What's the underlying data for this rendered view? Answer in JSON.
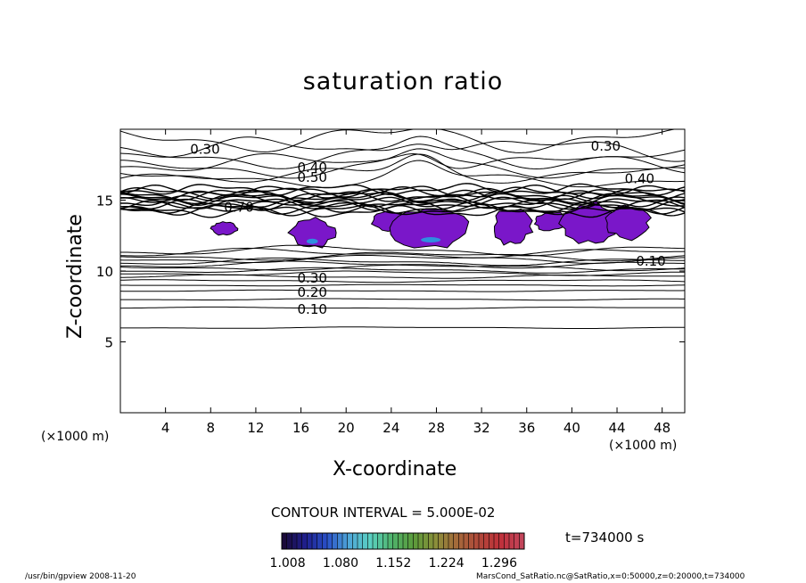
{
  "chart_data": {
    "type": "contour",
    "title": "saturation ratio",
    "xlabel": "X-coordinate",
    "ylabel": "Z-coordinate",
    "x_unit_label": "(×1000 m)",
    "xlim": [
      0,
      50
    ],
    "ylim": [
      0,
      20
    ],
    "x_ticks": [
      "4",
      "8",
      "12",
      "16",
      "20",
      "24",
      "28",
      "32",
      "36",
      "40",
      "44",
      "48"
    ],
    "x_tick_values": [
      4,
      8,
      12,
      16,
      20,
      24,
      28,
      32,
      36,
      40,
      44,
      48
    ],
    "y_ticks": [
      "5",
      "10",
      "15"
    ],
    "y_tick_values": [
      5,
      10,
      15
    ],
    "contour_interval_text": "CONTOUR INTERVAL = 5.000E-02",
    "contour_labels": [
      {
        "text": "0.30",
        "x": 7.5,
        "z": 18.6
      },
      {
        "text": "0.30",
        "x": 43.0,
        "z": 18.8
      },
      {
        "text": "0.40",
        "x": 17.0,
        "z": 17.3
      },
      {
        "text": "0.50",
        "x": 17.0,
        "z": 16.6
      },
      {
        "text": "0.40",
        "x": 46.0,
        "z": 16.5
      },
      {
        "text": "0.70",
        "x": 10.5,
        "z": 14.5
      },
      {
        "text": "0.30",
        "x": 17.0,
        "z": 9.5
      },
      {
        "text": "0.20",
        "x": 17.0,
        "z": 8.5
      },
      {
        "text": "0.10",
        "x": 17.0,
        "z": 7.3
      },
      {
        "text": "0.10",
        "x": 47.0,
        "z": 10.7
      }
    ],
    "supersaturated_regions": [
      {
        "x_range": [
          8.0,
          10.5
        ],
        "z_range": [
          12.5,
          13.5
        ]
      },
      {
        "x_range": [
          15.0,
          19.0
        ],
        "z_range": [
          11.6,
          13.8
        ]
      },
      {
        "x_range": [
          22.0,
          26.0
        ],
        "z_range": [
          12.8,
          14.2
        ]
      },
      {
        "x_range": [
          24.0,
          31.0
        ],
        "z_range": [
          11.5,
          14.6
        ]
      },
      {
        "x_range": [
          33.0,
          36.5
        ],
        "z_range": [
          11.8,
          14.5
        ]
      },
      {
        "x_range": [
          36.5,
          40.0
        ],
        "z_range": [
          12.8,
          14.2
        ]
      },
      {
        "x_range": [
          39.0,
          44.5
        ],
        "z_range": [
          11.8,
          14.9
        ]
      },
      {
        "x_range": [
          43.0,
          47.0
        ],
        "z_range": [
          12.2,
          14.6
        ]
      }
    ],
    "colorbar": {
      "tick_labels": [
        "1.008",
        "1.080",
        "1.152",
        "1.224",
        "1.296"
      ],
      "range": [
        1.0,
        1.33
      ],
      "colors": [
        "#1a0a3a",
        "#1f1f8f",
        "#2a52c8",
        "#4fa7d8",
        "#5ad0c0",
        "#4fb26a",
        "#5b9a3a",
        "#8a8f3a",
        "#a5693a",
        "#b0483a",
        "#c0303a",
        "#c2455a"
      ]
    },
    "time_label": "t=734000 s",
    "grid": false,
    "legend": "none"
  },
  "footer": {
    "left": "/usr/bin/gpview   2008-11-20",
    "right": "MarsCond_SatRatio.nc@SatRatio,x=0:50000,z=0:20000,t=734000"
  }
}
